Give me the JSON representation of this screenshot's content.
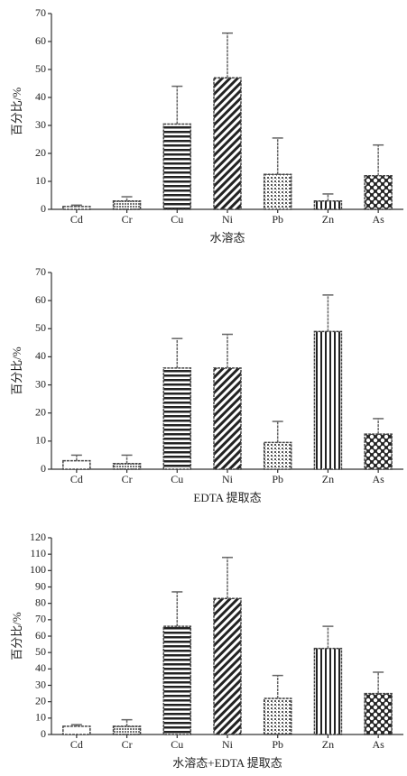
{
  "chart_data": [
    {
      "type": "bar",
      "y_label": "百分比/%",
      "x_label": "水溶态",
      "categories": [
        "Cd",
        "Cr",
        "Cu",
        "Ni",
        "Pb",
        "Zn",
        "As"
      ],
      "values": [
        1,
        3,
        30.5,
        47,
        12.5,
        3,
        12
      ],
      "errors": [
        0.5,
        1.5,
        13.5,
        16,
        13,
        2.5,
        11
      ],
      "ylim": [
        0,
        70
      ],
      "yticks": [
        0,
        10,
        20,
        30,
        40,
        50,
        60,
        70
      ]
    },
    {
      "type": "bar",
      "y_label": "百分比/%",
      "x_label": "EDTA 提取态",
      "categories": [
        "Cd",
        "Cr",
        "Cu",
        "Ni",
        "Pb",
        "Zn",
        "As"
      ],
      "values": [
        3,
        2,
        36,
        36,
        9.5,
        49,
        12.5
      ],
      "errors": [
        2,
        3,
        10.5,
        12,
        7.5,
        13,
        5.5
      ],
      "ylim": [
        0,
        70
      ],
      "yticks": [
        0,
        10,
        20,
        30,
        40,
        50,
        60,
        70
      ]
    },
    {
      "type": "bar",
      "y_label": "百分比/%",
      "x_label": "水溶态+EDTA 提取态",
      "categories": [
        "Cd",
        "Cr",
        "Cu",
        "Ni",
        "Pb",
        "Zn",
        "As"
      ],
      "values": [
        5,
        5,
        66,
        83,
        22,
        52.5,
        25
      ],
      "errors": [
        1,
        4,
        21,
        25,
        14,
        13.5,
        13
      ],
      "ylim": [
        0,
        120
      ],
      "yticks": [
        0,
        10,
        20,
        30,
        40,
        50,
        60,
        70,
        80,
        90,
        100,
        110,
        120
      ]
    }
  ]
}
